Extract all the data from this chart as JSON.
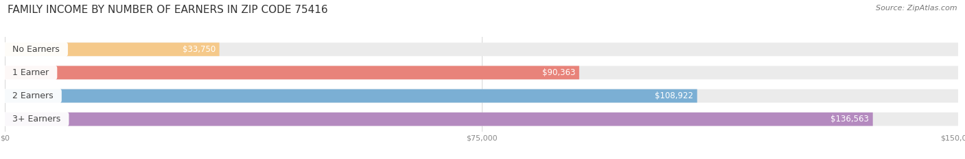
{
  "title": "FAMILY INCOME BY NUMBER OF EARNERS IN ZIP CODE 75416",
  "source": "Source: ZipAtlas.com",
  "categories": [
    "No Earners",
    "1 Earner",
    "2 Earners",
    "3+ Earners"
  ],
  "values": [
    33750,
    90363,
    108922,
    136563
  ],
  "bar_colors": [
    "#f5c98a",
    "#e8837a",
    "#7bafd4",
    "#b48abf"
  ],
  "bar_bg_color": "#ebebeb",
  "max_value": 150000,
  "x_ticks": [
    0,
    75000,
    150000
  ],
  "x_tick_labels": [
    "$0",
    "$75,000",
    "$150,000"
  ],
  "title_fontsize": 11,
  "source_fontsize": 8,
  "bar_label_fontsize": 8.5,
  "category_fontsize": 9,
  "fig_bg_color": "#ffffff",
  "label_color_inside": "#ffffff",
  "label_color_outside": "#555555",
  "category_text_color": "#444444",
  "title_color": "#333333",
  "source_color": "#777777",
  "tick_color": "#888888"
}
